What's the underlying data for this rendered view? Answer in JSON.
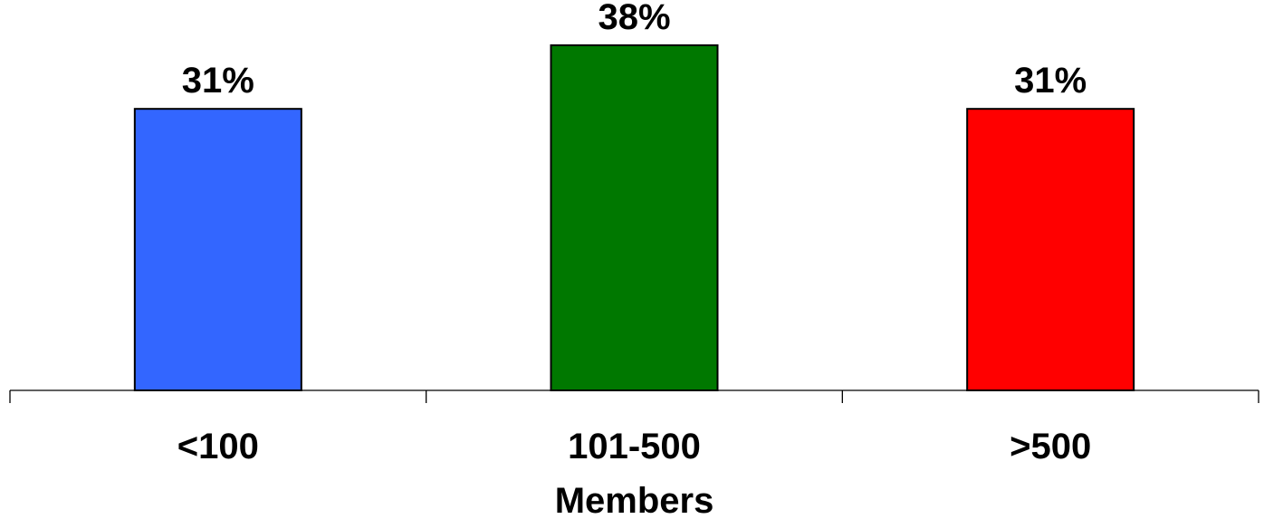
{
  "chart_data": {
    "type": "bar",
    "categories": [
      "<100",
      "101-500",
      ">500"
    ],
    "values": [
      31,
      38,
      31
    ],
    "value_labels": [
      "31%",
      "38%",
      "31%"
    ],
    "colors": [
      "#3366FF",
      "#007800",
      "#FF0000"
    ],
    "title": "",
    "xlabel": "Members",
    "ylabel": "",
    "ylim": [
      0,
      38
    ],
    "grid": false,
    "legend": "none"
  }
}
